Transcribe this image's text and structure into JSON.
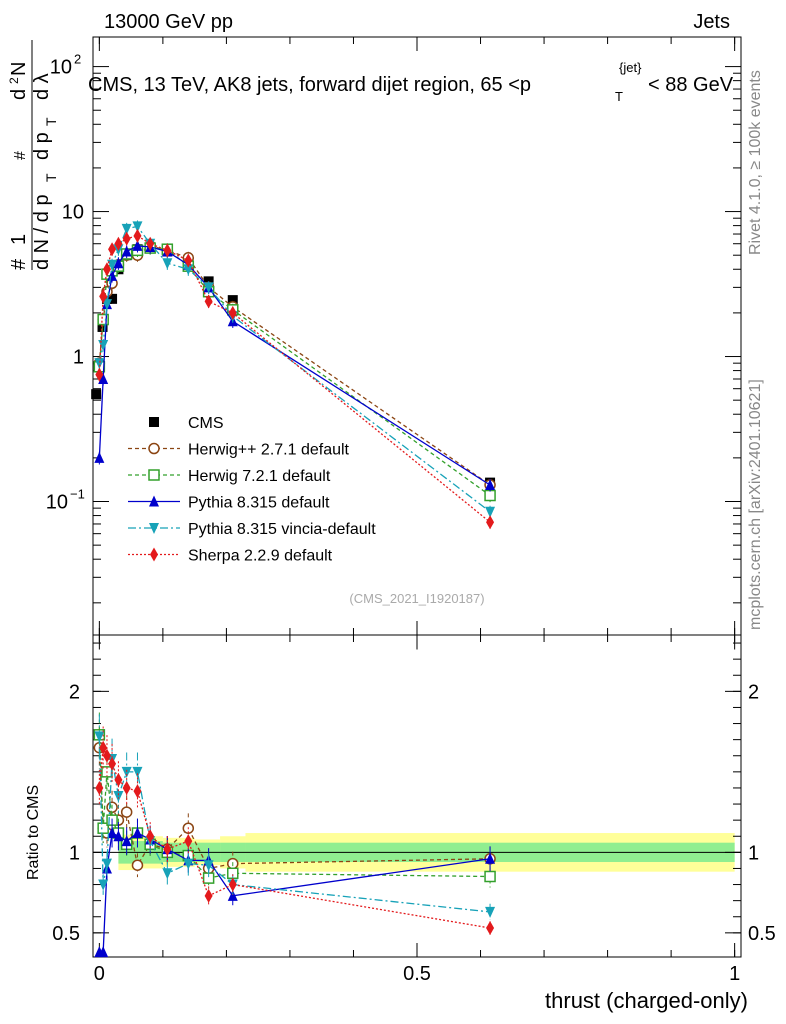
{
  "header": {
    "left": "13000 GeV pp",
    "right": "Jets"
  },
  "side_labels": {
    "rivet": "Rivet 4.1.0, ≥ 100k events",
    "mcplots": "mcplots.cern.ch [arXiv:2401.10621]"
  },
  "chart_data": {
    "type": "line",
    "title": "CMS, 13 TeV, AK8 jets, forward dijet region, 65 <p",
    "title_sup": "{jet}",
    "title_sub": "T",
    "title_tail": "< 88 GeV",
    "analysis_id": "(CMS_2021_I1920187)",
    "xlabel": "thrust (charged-only)",
    "ylabel_main": "1/N dN/dλ",
    "ylabel_ratio": "Ratio to CMS",
    "xlim": [
      -0.01,
      1.01
    ],
    "ylim_main": [
      0.012,
      160
    ],
    "ylim_ratio": [
      0.35,
      2.35
    ],
    "log_y_main": true,
    "x_ticks": [
      {
        "value": 0,
        "label": "0"
      },
      {
        "value": 0.5,
        "label": "0.5"
      },
      {
        "value": 1,
        "label": "1"
      }
    ],
    "y_ticks_main": [
      {
        "value": 100,
        "base": "10",
        "exp": "2"
      },
      {
        "value": 10,
        "base": "10",
        "exp": ""
      },
      {
        "value": 1,
        "base": "1",
        "exp": ""
      },
      {
        "value": 0.1,
        "base": "10",
        "exp": "−1"
      }
    ],
    "y_ticks_ratio": [
      {
        "value": 2,
        "label": "2"
      },
      {
        "value": 1,
        "label": "1"
      },
      {
        "value": 0.5,
        "label": "0.5"
      }
    ],
    "ref_band": {
      "x": [
        0.03,
        0.06,
        0.1,
        0.15,
        0.19,
        0.23,
        1.0
      ],
      "stat_half": [
        0.07,
        0.07,
        0.06,
        0.06,
        0.06,
        0.06,
        0.06
      ],
      "total_half": [
        0.11,
        0.1,
        0.09,
        0.08,
        0.1,
        0.12,
        0.11
      ]
    },
    "series": [
      {
        "name": "CMS",
        "color": "#000000",
        "marker": "square",
        "dash": "none",
        "is_data": true,
        "x": [
          -0.005,
          0.005,
          0.012,
          0.02,
          0.03,
          0.043,
          0.06,
          0.08,
          0.107,
          0.14,
          0.172,
          0.21,
          0.615
        ],
        "y": [
          0.55,
          1.6,
          2.5,
          2.5,
          4.0,
          5.0,
          5.5,
          5.6,
          5.3,
          4.3,
          3.3,
          2.45,
          0.135
        ],
        "ratio": [
          1,
          1,
          1,
          1,
          1,
          1,
          1,
          1,
          1,
          1,
          1,
          1,
          1
        ]
      },
      {
        "name": "Herwig++ 2.7.1 default",
        "color": "#8b4513",
        "marker": "circle-open",
        "dash": "4,3",
        "is_data": false,
        "x": [
          0.0,
          0.006,
          0.012,
          0.02,
          0.03,
          0.043,
          0.06,
          0.08,
          0.107,
          0.14,
          0.172,
          0.21,
          0.615
        ],
        "y": [
          0.9,
          1.8,
          2.8,
          3.2,
          4.3,
          5.0,
          5.0,
          5.8,
          5.4,
          4.8,
          3.0,
          2.2,
          0.13
        ],
        "ratio": [
          1.65,
          1.15,
          1.12,
          1.28,
          1.2,
          1.25,
          0.92,
          1.05,
          1.02,
          1.15,
          0.9,
          0.93,
          0.96
        ]
      },
      {
        "name": "Herwig 7.2.1 default",
        "color": "#33a02c",
        "marker": "square-open",
        "dash": "4,3",
        "is_data": false,
        "x": [
          0.0,
          0.006,
          0.012,
          0.02,
          0.03,
          0.043,
          0.06,
          0.08,
          0.107,
          0.14,
          0.172,
          0.21,
          0.615
        ],
        "y": [
          0.85,
          1.8,
          3.7,
          3.9,
          4.2,
          5.1,
          5.4,
          5.6,
          5.5,
          4.2,
          2.8,
          2.1,
          0.11
        ],
        "ratio": [
          1.73,
          1.15,
          1.5,
          1.2,
          1.12,
          1.05,
          1.12,
          1.05,
          1.0,
          0.98,
          0.84,
          0.87,
          0.85
        ]
      },
      {
        "name": "Pythia 8.315 default",
        "color": "#0000cc",
        "marker": "triangle-up",
        "dash": "none",
        "is_data": false,
        "x": [
          0.0,
          0.006,
          0.012,
          0.02,
          0.03,
          0.043,
          0.06,
          0.08,
          0.107,
          0.14,
          0.172,
          0.21,
          0.615
        ],
        "y": [
          0.2,
          0.7,
          2.3,
          3.6,
          4.4,
          5.3,
          5.8,
          5.7,
          5.3,
          4.3,
          3.0,
          1.75,
          0.13
        ],
        "ratio": [
          0.38,
          0.38,
          0.9,
          1.12,
          1.1,
          1.07,
          1.12,
          1.08,
          1.02,
          0.95,
          0.95,
          0.73,
          0.96
        ]
      },
      {
        "name": "Pythia 8.315 vincia-default",
        "color": "#17a2b8",
        "marker": "triangle-down",
        "dash": "8,3,2,3",
        "is_data": false,
        "x": [
          0.0,
          0.006,
          0.012,
          0.02,
          0.03,
          0.043,
          0.06,
          0.08,
          0.107,
          0.14,
          0.172,
          0.21,
          0.615
        ],
        "y": [
          0.9,
          1.2,
          2.3,
          4.3,
          5.5,
          7.6,
          7.9,
          6.0,
          4.4,
          4.0,
          3.0,
          1.9,
          0.085
        ],
        "ratio": [
          1.72,
          0.8,
          0.93,
          1.58,
          1.35,
          1.5,
          1.5,
          1.07,
          0.87,
          0.93,
          0.92,
          0.8,
          0.63
        ]
      },
      {
        "name": "Sherpa 2.2.9 default",
        "color": "#e31a1c",
        "marker": "diamond",
        "dash": "2,2",
        "is_data": false,
        "x": [
          0.0,
          0.006,
          0.012,
          0.02,
          0.03,
          0.043,
          0.06,
          0.08,
          0.107,
          0.14,
          0.172,
          0.21,
          0.615
        ],
        "y": [
          0.75,
          2.6,
          4.0,
          5.5,
          6.0,
          6.5,
          6.8,
          6.0,
          5.4,
          4.6,
          2.4,
          2.0,
          0.072
        ],
        "ratio": [
          1.4,
          1.65,
          1.6,
          1.55,
          1.45,
          1.4,
          1.38,
          1.1,
          1.02,
          1.07,
          0.73,
          0.8,
          0.53
        ]
      }
    ]
  }
}
